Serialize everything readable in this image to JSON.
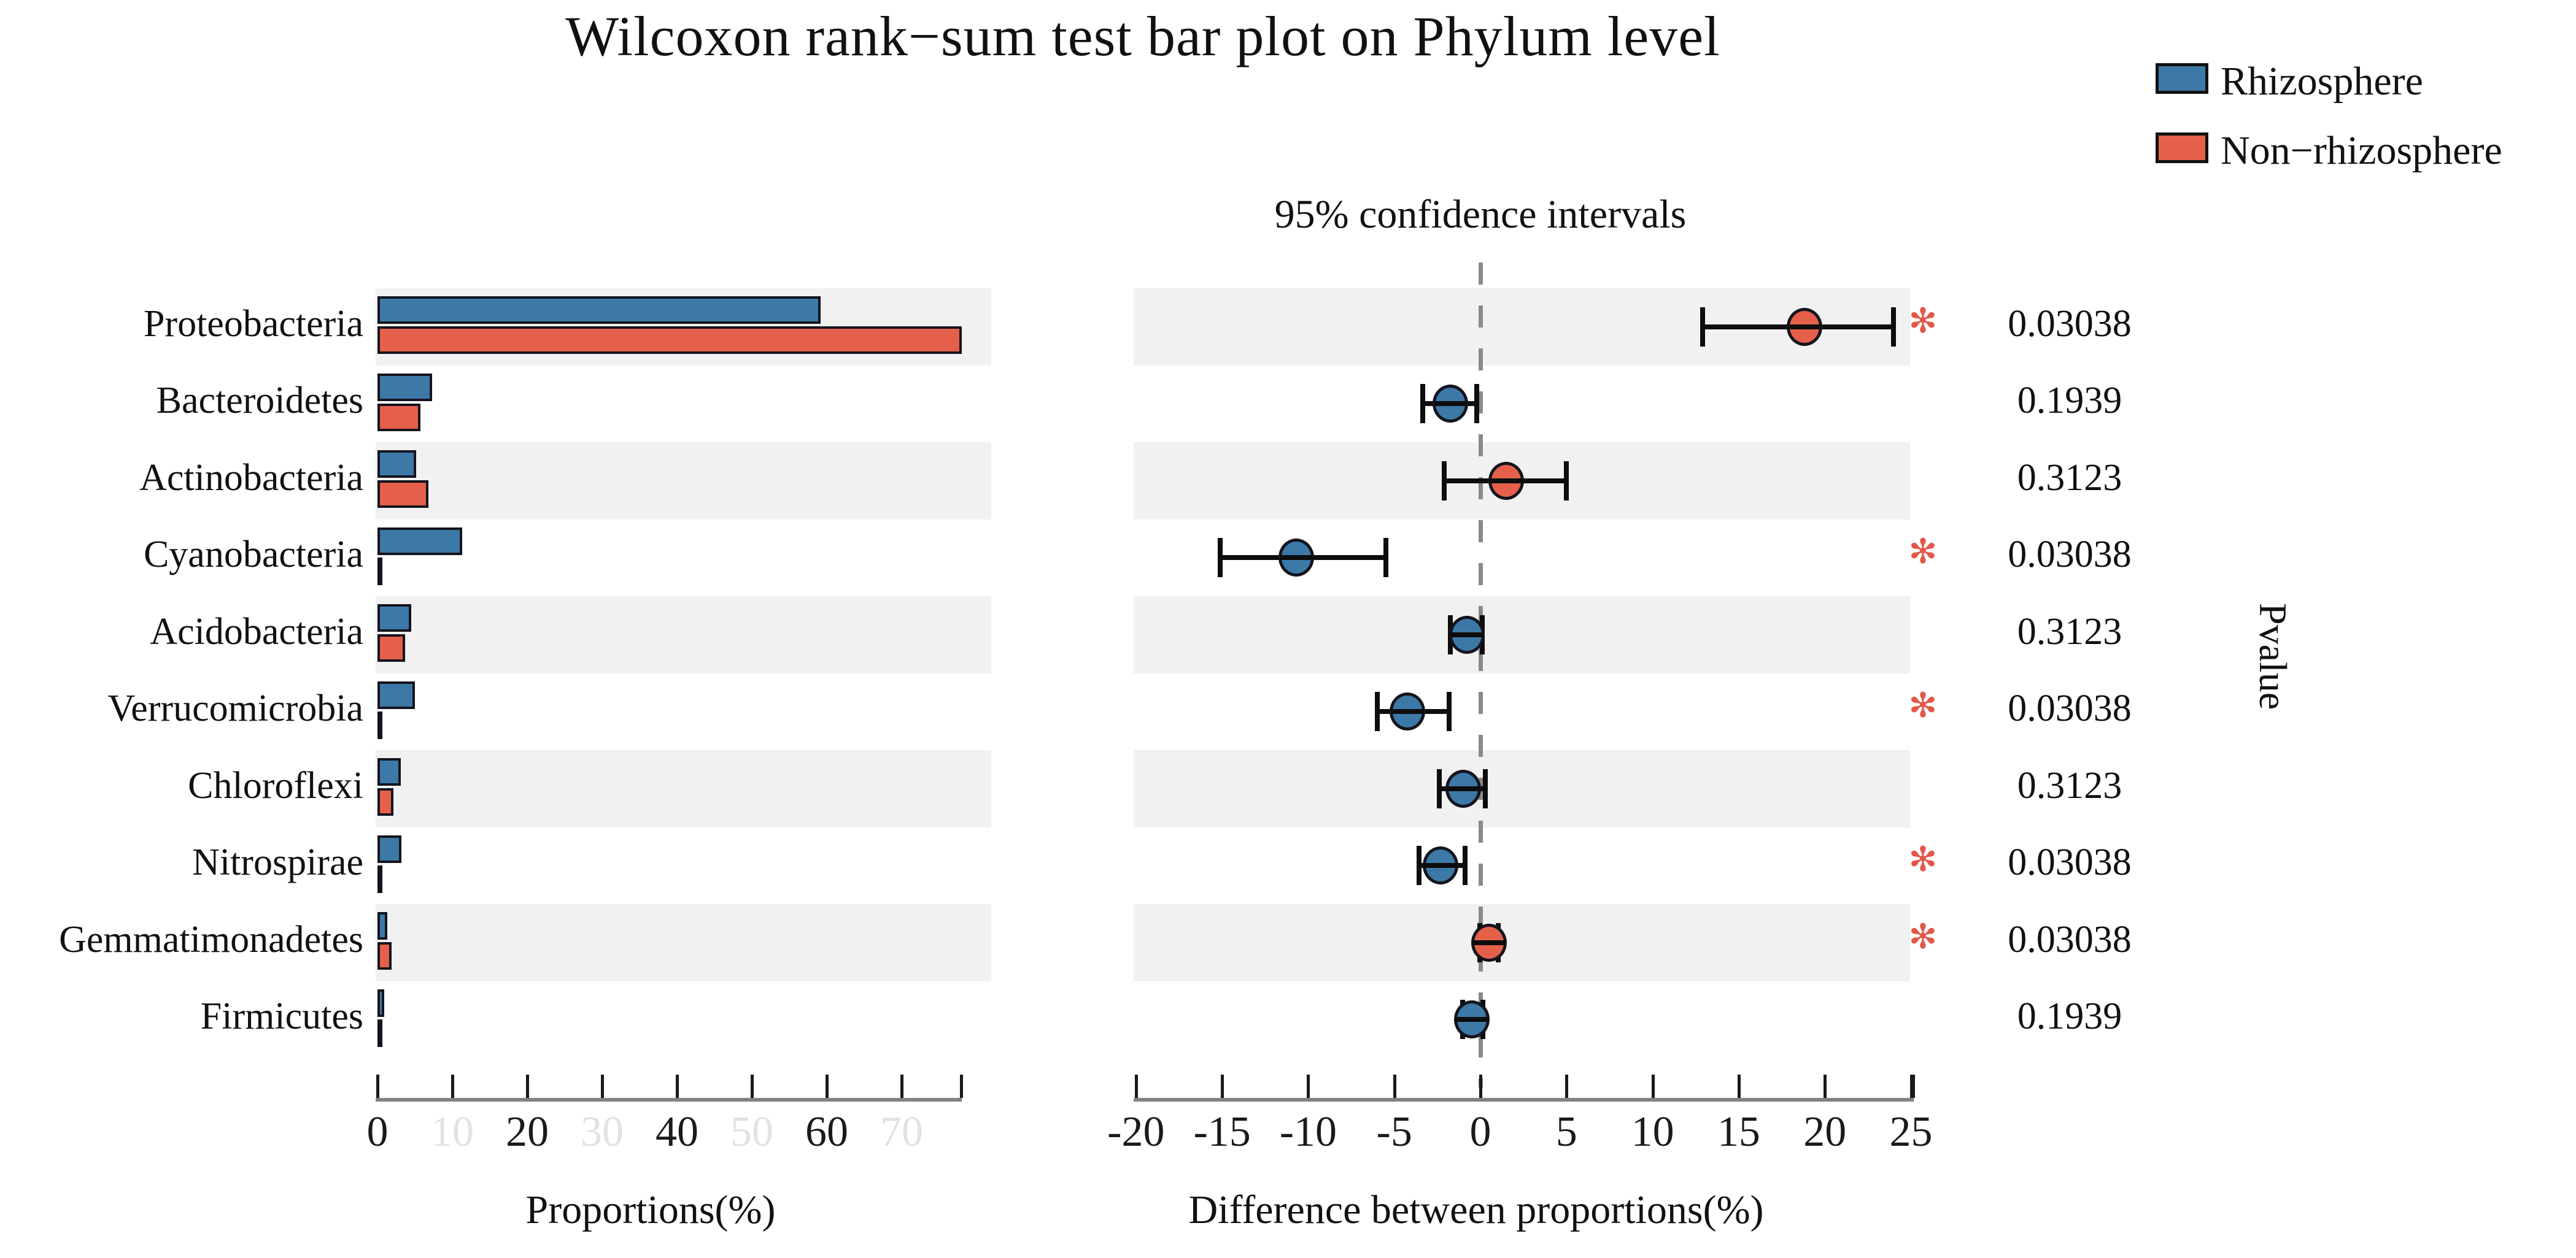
{
  "title": "Wilcoxon rank−sum test bar plot on Phylum level",
  "legend": {
    "items": [
      {
        "label": "Rhizosphere",
        "color": "#3d79a7"
      },
      {
        "label": "Non−rhizosphere",
        "color": "#e5604a"
      }
    ]
  },
  "right_panel_title": "95% confidence intervals",
  "pvalue_axis_label": "Pvalue",
  "significance_marker": {
    "glyph": "✻",
    "color": "#e4564a",
    "meaning": "p < 0.05"
  },
  "colors": {
    "rhizosphere_blue": "#3d79a7",
    "non_rhizosphere_red": "#e5604a",
    "bar_border": "#14141e",
    "stripe_gray": "#f1f1f1",
    "axis_gray": "#828282",
    "faded_tick_label": "#e2e2e2",
    "dashed_zero_line": "#8a8a8a"
  },
  "chart_data": {
    "type": "bar",
    "title": "Wilcoxon rank−sum test bar plot on Phylum level",
    "categories": [
      "Proteobacteria",
      "Bacteroidetes",
      "Actinobacteria",
      "Cyanobacteria",
      "Acidobacteria",
      "Verrucomicrobia",
      "Chloroflexi",
      "Nitrospirae",
      "Gemmatimonadetes",
      "Firmicutes"
    ],
    "series": [
      {
        "name": "Rhizosphere",
        "color": "#3d79a7",
        "values": [
          59.2,
          7.3,
          5.2,
          11.3,
          4.5,
          5.0,
          3.1,
          3.2,
          1.3,
          0.9
        ]
      },
      {
        "name": "Non−rhizosphere",
        "color": "#e5604a",
        "values": [
          78.0,
          5.7,
          6.8,
          0.35,
          3.7,
          0.4,
          2.1,
          0.35,
          1.9,
          0.5
        ]
      }
    ],
    "proportions_axis": {
      "xlabel": "Proportions(%)",
      "range": [
        0,
        77.9
      ],
      "ticks": [
        0,
        10,
        20,
        30,
        40,
        50,
        60,
        70
      ],
      "faded_ticks": [
        10,
        30,
        50,
        70
      ]
    },
    "difference_panel": {
      "subtitle": "95% confidence intervals",
      "xlabel": "Difference between proportions(%)",
      "range": [
        -20,
        25
      ],
      "ticks": [
        -20,
        -15,
        -10,
        -5,
        0,
        5,
        10,
        15,
        20,
        25
      ],
      "zero_line": 0,
      "points": [
        {
          "category": "Proteobacteria",
          "value": 18.8,
          "ci": [
            12.9,
            24.0
          ],
          "enriched_group": "Non−rhizosphere",
          "significant": true,
          "pvalue": "0.03038"
        },
        {
          "category": "Bacteroidetes",
          "value": -1.75,
          "ci": [
            -3.35,
            -0.2
          ],
          "enriched_group": "Rhizosphere",
          "significant": false,
          "pvalue": "0.1939"
        },
        {
          "category": "Actinobacteria",
          "value": 1.5,
          "ci": [
            -2.1,
            5.0
          ],
          "enriched_group": "Non−rhizosphere",
          "significant": false,
          "pvalue": "0.3123"
        },
        {
          "category": "Cyanobacteria",
          "value": -10.7,
          "ci": [
            -15.1,
            -5.5
          ],
          "enriched_group": "Rhizosphere",
          "significant": true,
          "pvalue": "0.03038"
        },
        {
          "category": "Acidobacteria",
          "value": -0.8,
          "ci": [
            -1.75,
            0.1
          ],
          "enriched_group": "Rhizosphere",
          "significant": false,
          "pvalue": "0.3123"
        },
        {
          "category": "Verrucomicrobia",
          "value": -4.25,
          "ci": [
            -6.0,
            -1.8
          ],
          "enriched_group": "Rhizosphere",
          "significant": true,
          "pvalue": "0.03038"
        },
        {
          "category": "Chloroflexi",
          "value": -1.0,
          "ci": [
            -2.4,
            0.3
          ],
          "enriched_group": "Rhizosphere",
          "significant": false,
          "pvalue": "0.3123"
        },
        {
          "category": "Nitrospirae",
          "value": -2.3,
          "ci": [
            -3.55,
            -0.9
          ],
          "enriched_group": "Rhizosphere",
          "significant": true,
          "pvalue": "0.03038"
        },
        {
          "category": "Gemmatimonadetes",
          "value": 0.5,
          "ci": [
            -0.05,
            1.05
          ],
          "enriched_group": "Non−rhizosphere",
          "significant": true,
          "pvalue": "0.03038"
        },
        {
          "category": "Firmicutes",
          "value": -0.5,
          "ci": [
            -1.05,
            0.15
          ],
          "enriched_group": "Rhizosphere",
          "significant": false,
          "pvalue": "0.1939"
        }
      ],
      "pvalue_column_label": "Pvalue"
    },
    "legend_position": "top-right",
    "grid": "alternating row stripes"
  }
}
